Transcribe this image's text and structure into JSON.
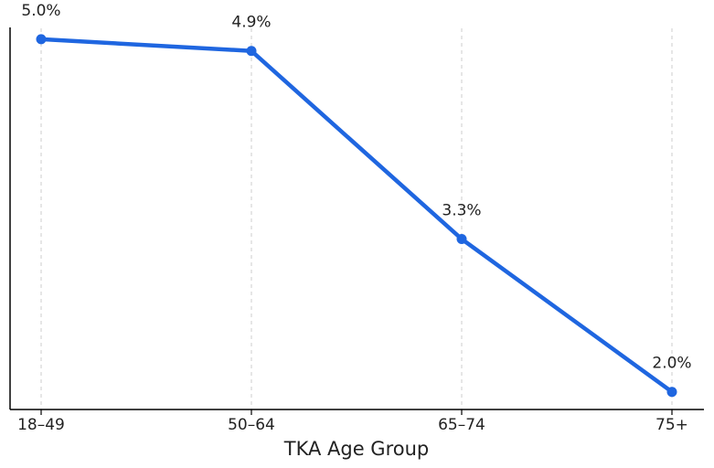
{
  "chart_data": {
    "type": "line",
    "xlabel": "TKA Age Group",
    "ylabel": "",
    "categories": [
      "18–49",
      "50–64",
      "65–74",
      "75+"
    ],
    "series": [
      {
        "values": [
          5.0,
          4.9,
          3.3,
          2.0
        ],
        "labels": [
          "5.0%",
          "4.9%",
          "3.3%",
          "2.0%"
        ]
      }
    ],
    "ylim": [
      1.85,
      5.1
    ],
    "grid": "vertical dashed",
    "legend": "none",
    "colors": {
      "line": "#1f66e0",
      "axis": "#000000",
      "grid": "#cccccc"
    }
  }
}
